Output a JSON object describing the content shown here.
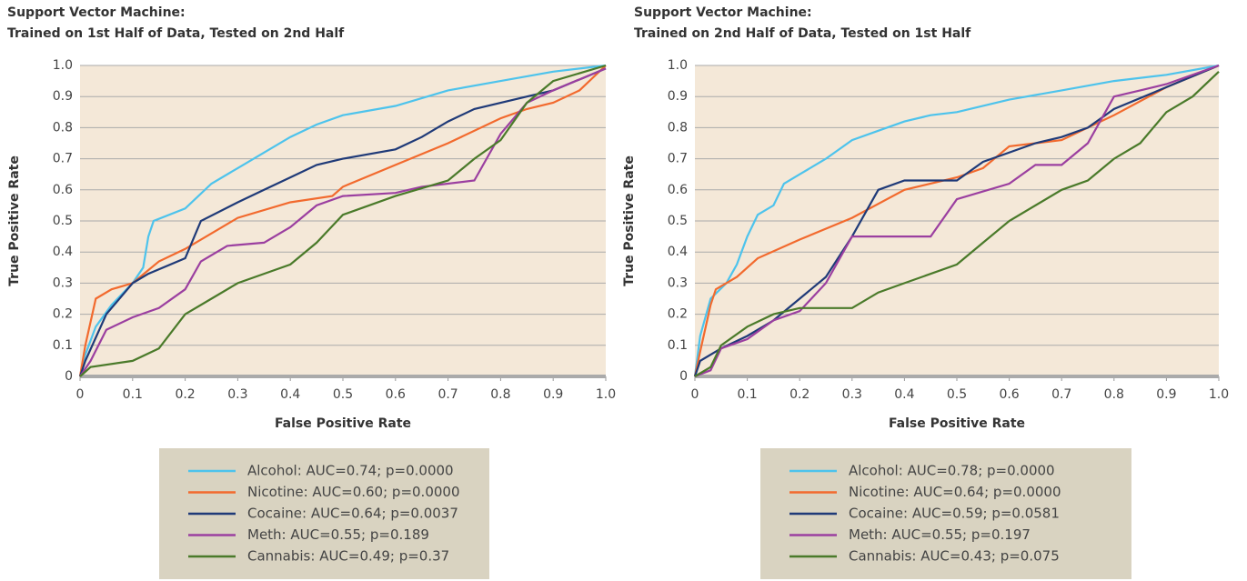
{
  "chart_data": [
    {
      "type": "line",
      "title": "Support Vector Machine:",
      "subtitle": "Trained on 1st Half of Data, Tested on 2nd Half",
      "xlabel": "False Positive Rate",
      "ylabel": "True Positive Rate",
      "xlim": [
        0,
        1
      ],
      "ylim": [
        0,
        1
      ],
      "xticks": [
        0,
        0.1,
        0.2,
        0.3,
        0.4,
        0.5,
        0.6,
        0.7,
        0.8,
        0.9,
        {
          "value": 1,
          "label": "1.0"
        }
      ],
      "yticks": [
        0,
        0.1,
        0.2,
        0.3,
        0.4,
        0.5,
        0.6,
        0.7,
        0.8,
        0.9,
        {
          "value": 1,
          "label": "1.0"
        }
      ],
      "grid": true,
      "series": [
        {
          "name": "Alcohol: AUC=0.74; p=0.0000",
          "color": "#4dc3ec",
          "x": [
            0,
            0.01,
            0.03,
            0.06,
            0.1,
            0.12,
            0.13,
            0.14,
            0.2,
            0.25,
            0.3,
            0.35,
            0.4,
            0.45,
            0.5,
            0.6,
            0.7,
            0.8,
            0.9,
            1
          ],
          "values": [
            0,
            0.07,
            0.16,
            0.23,
            0.3,
            0.35,
            0.45,
            0.5,
            0.54,
            0.62,
            0.67,
            0.72,
            0.77,
            0.81,
            0.84,
            0.87,
            0.92,
            0.95,
            0.98,
            1
          ]
        },
        {
          "name": "Nicotine: AUC=0.60; p=0.0000",
          "color": "#f26a2e",
          "x": [
            0,
            0.01,
            0.03,
            0.06,
            0.1,
            0.15,
            0.2,
            0.25,
            0.3,
            0.4,
            0.48,
            0.5,
            0.6,
            0.7,
            0.8,
            0.85,
            0.9,
            0.95,
            1
          ],
          "values": [
            0,
            0.1,
            0.25,
            0.28,
            0.3,
            0.37,
            0.41,
            0.46,
            0.51,
            0.56,
            0.58,
            0.61,
            0.68,
            0.75,
            0.83,
            0.86,
            0.88,
            0.92,
            1
          ]
        },
        {
          "name": "Cocaine: AUC=0.64; p=0.0037",
          "color": "#1f3a78",
          "x": [
            0,
            0.01,
            0.05,
            0.1,
            0.13,
            0.2,
            0.23,
            0.3,
            0.35,
            0.4,
            0.45,
            0.5,
            0.6,
            0.65,
            0.7,
            0.75,
            0.85,
            0.9,
            1
          ],
          "values": [
            0,
            0.05,
            0.2,
            0.3,
            0.33,
            0.38,
            0.5,
            0.56,
            0.6,
            0.64,
            0.68,
            0.7,
            0.73,
            0.77,
            0.82,
            0.86,
            0.9,
            0.92,
            0.99
          ]
        },
        {
          "name": "Meth: AUC=0.55; p=0.189",
          "color": "#9b3fa0",
          "x": [
            0,
            0.02,
            0.05,
            0.1,
            0.15,
            0.2,
            0.23,
            0.28,
            0.35,
            0.4,
            0.45,
            0.5,
            0.6,
            0.65,
            0.75,
            0.8,
            0.85,
            0.9,
            1
          ],
          "values": [
            0,
            0.05,
            0.15,
            0.19,
            0.22,
            0.28,
            0.37,
            0.42,
            0.43,
            0.48,
            0.55,
            0.58,
            0.59,
            0.61,
            0.63,
            0.78,
            0.88,
            0.92,
            0.99
          ]
        },
        {
          "name": "Cannabis: AUC=0.49; p=0.37",
          "color": "#4a7a2a",
          "x": [
            0,
            0.02,
            0.1,
            0.15,
            0.2,
            0.25,
            0.3,
            0.35,
            0.4,
            0.45,
            0.5,
            0.6,
            0.7,
            0.75,
            0.8,
            0.85,
            0.9,
            1
          ],
          "values": [
            0,
            0.03,
            0.05,
            0.09,
            0.2,
            0.25,
            0.3,
            0.33,
            0.36,
            0.43,
            0.52,
            0.58,
            0.63,
            0.7,
            0.76,
            0.88,
            0.95,
            1
          ]
        }
      ]
    },
    {
      "type": "line",
      "title": "Support Vector Machine:",
      "subtitle": "Trained on 2nd Half of Data, Tested on 1st Half",
      "xlabel": "False Positive Rate",
      "ylabel": "True Positive Rate",
      "xlim": [
        0,
        1
      ],
      "ylim": [
        0,
        1
      ],
      "xticks": [
        0,
        0.1,
        0.2,
        0.3,
        0.4,
        0.5,
        0.6,
        0.7,
        0.8,
        0.9,
        {
          "value": 1,
          "label": "1.0"
        }
      ],
      "yticks": [
        0,
        0.1,
        0.2,
        0.3,
        0.4,
        0.5,
        0.6,
        0.7,
        0.8,
        0.9,
        {
          "value": 1,
          "label": "1.0"
        }
      ],
      "grid": true,
      "series": [
        {
          "name": "Alcohol: AUC=0.78; p=0.0000",
          "color": "#4dc3ec",
          "x": [
            0,
            0.01,
            0.03,
            0.06,
            0.08,
            0.1,
            0.12,
            0.15,
            0.17,
            0.2,
            0.25,
            0.3,
            0.35,
            0.4,
            0.45,
            0.5,
            0.6,
            0.7,
            0.8,
            0.9,
            1
          ],
          "values": [
            0,
            0.13,
            0.25,
            0.3,
            0.36,
            0.45,
            0.52,
            0.55,
            0.62,
            0.65,
            0.7,
            0.76,
            0.79,
            0.82,
            0.84,
            0.85,
            0.89,
            0.92,
            0.95,
            0.97,
            1
          ]
        },
        {
          "name": "Nicotine: AUC=0.64; p=0.0000",
          "color": "#f26a2e",
          "x": [
            0,
            0.01,
            0.03,
            0.04,
            0.08,
            0.12,
            0.2,
            0.3,
            0.4,
            0.5,
            0.55,
            0.6,
            0.7,
            0.8,
            0.9,
            1
          ],
          "values": [
            0,
            0.08,
            0.23,
            0.28,
            0.32,
            0.38,
            0.44,
            0.51,
            0.6,
            0.64,
            0.67,
            0.74,
            0.76,
            0.84,
            0.93,
            1
          ]
        },
        {
          "name": "Cocaine: AUC=0.59; p=0.0581",
          "color": "#1f3a78",
          "x": [
            0,
            0.01,
            0.05,
            0.1,
            0.15,
            0.2,
            0.25,
            0.3,
            0.35,
            0.4,
            0.5,
            0.55,
            0.65,
            0.7,
            0.75,
            0.8,
            0.9,
            1
          ],
          "values": [
            0,
            0.05,
            0.09,
            0.13,
            0.18,
            0.25,
            0.32,
            0.45,
            0.6,
            0.63,
            0.63,
            0.69,
            0.75,
            0.77,
            0.8,
            0.86,
            0.93,
            1
          ]
        },
        {
          "name": "Meth: AUC=0.55; p=0.197",
          "color": "#9b3fa0",
          "x": [
            0,
            0.03,
            0.05,
            0.1,
            0.15,
            0.2,
            0.25,
            0.3,
            0.45,
            0.5,
            0.6,
            0.65,
            0.7,
            0.75,
            0.8,
            0.85,
            0.9,
            0.95,
            1
          ],
          "values": [
            0,
            0.02,
            0.09,
            0.12,
            0.18,
            0.21,
            0.3,
            0.45,
            0.45,
            0.57,
            0.62,
            0.68,
            0.68,
            0.75,
            0.9,
            0.92,
            0.94,
            0.97,
            1
          ]
        },
        {
          "name": "Cannabis: AUC=0.43; p=0.075",
          "color": "#4a7a2a",
          "x": [
            0,
            0.03,
            0.05,
            0.1,
            0.15,
            0.2,
            0.3,
            0.35,
            0.4,
            0.5,
            0.55,
            0.6,
            0.7,
            0.75,
            0.8,
            0.85,
            0.9,
            0.95,
            1
          ],
          "values": [
            0,
            0.03,
            0.1,
            0.16,
            0.2,
            0.22,
            0.22,
            0.27,
            0.3,
            0.36,
            0.43,
            0.5,
            0.6,
            0.63,
            0.7,
            0.75,
            0.85,
            0.9,
            0.98
          ]
        }
      ]
    }
  ]
}
